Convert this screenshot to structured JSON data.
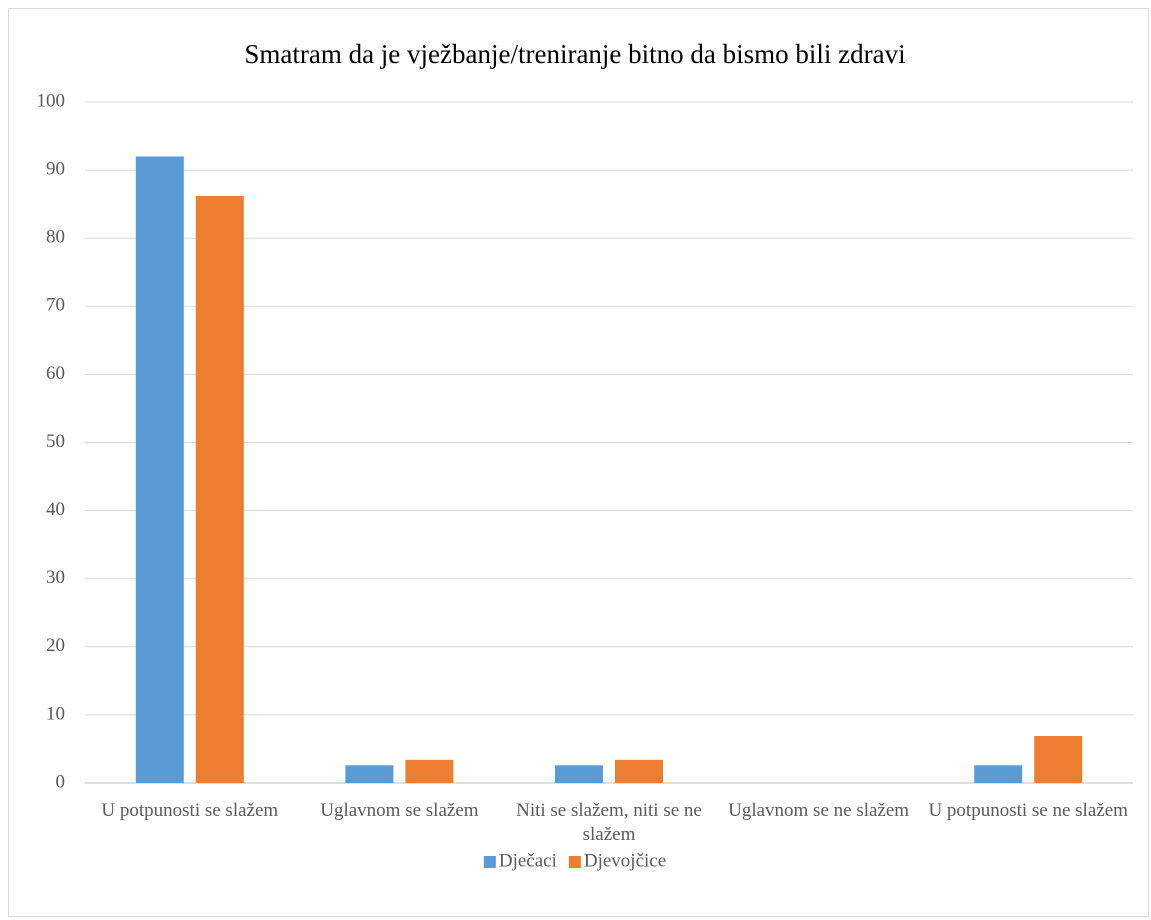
{
  "chart_data": {
    "type": "bar",
    "title": "Smatram da je vježbanje/treniranje bitno da bismo bili zdravi",
    "categories": [
      "U potpunosti se slažem",
      "Uglavnom se slažem",
      "Niti se slažem, niti se ne slažem",
      "Uglavnom se ne slažem",
      "U potpunosti se ne slažem"
    ],
    "series": [
      {
        "name": "Dječaci",
        "color": "#5b9bd5",
        "values": [
          92,
          2.6,
          2.6,
          0,
          2.6
        ]
      },
      {
        "name": "Djevojčice",
        "color": "#ed7d31",
        "values": [
          86.2,
          3.4,
          3.4,
          0,
          6.9
        ]
      }
    ],
    "ylim": [
      0,
      100
    ],
    "yticks": [
      0,
      10,
      20,
      30,
      40,
      50,
      60,
      70,
      80,
      90,
      100
    ],
    "grid": true,
    "legend": "bottom"
  }
}
